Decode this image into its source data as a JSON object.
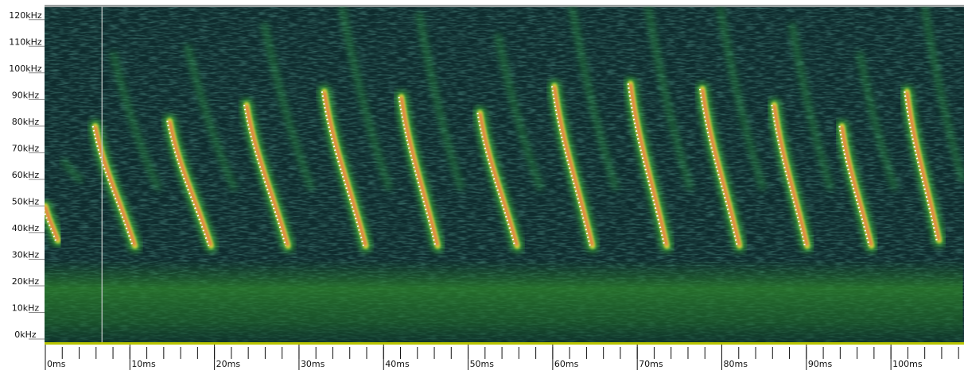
{
  "chart_data": {
    "type": "spectrogram",
    "xlim": [
      0,
      108.5
    ],
    "ylim": [
      0,
      125
    ],
    "yticks": [
      {
        "value": 0,
        "label": "0kHz"
      },
      {
        "value": 10,
        "label": "10kHz"
      },
      {
        "value": 20,
        "label": "20kHz"
      },
      {
        "value": 30,
        "label": "30kHz"
      },
      {
        "value": 40,
        "label": "40kHz"
      },
      {
        "value": 50,
        "label": "50kHz"
      },
      {
        "value": 60,
        "label": "60kHz"
      },
      {
        "value": 70,
        "label": "70kHz"
      },
      {
        "value": 80,
        "label": "80kHz"
      },
      {
        "value": 90,
        "label": "90kHz"
      },
      {
        "value": 100,
        "label": "100kHz"
      },
      {
        "value": 110,
        "label": "110kHz"
      },
      {
        "value": 120,
        "label": "120kHz"
      }
    ],
    "xticks": [
      {
        "value": 0,
        "label": "0ms"
      },
      {
        "value": 10,
        "label": "10ms"
      },
      {
        "value": 20,
        "label": "20ms"
      },
      {
        "value": 30,
        "label": "30ms"
      },
      {
        "value": 40,
        "label": "40ms"
      },
      {
        "value": 50,
        "label": "50ms"
      },
      {
        "value": 60,
        "label": "60ms"
      },
      {
        "value": 70,
        "label": "70ms"
      },
      {
        "value": 80,
        "label": "80ms"
      },
      {
        "value": 90,
        "label": "90ms"
      },
      {
        "value": 100,
        "label": "100ms"
      }
    ],
    "xminor_ticks": [
      0,
      2,
      4,
      6,
      8,
      10,
      12,
      14,
      16,
      18,
      20,
      22,
      24,
      26,
      28,
      30,
      32,
      34,
      36,
      38,
      40,
      42,
      44,
      46,
      48,
      50,
      52,
      54,
      56,
      58,
      60,
      62,
      64,
      66,
      68,
      70,
      72,
      74,
      76,
      78,
      80,
      82,
      84,
      86,
      88,
      90,
      92,
      94,
      96,
      98,
      100,
      102,
      104,
      106,
      108
    ],
    "cursor_x": 6.7,
    "calls": [
      {
        "t_start": 0,
        "t_end": 1.5,
        "f_start": 50,
        "f_end": 37
      },
      {
        "t_start": 5.9,
        "t_end": 10.6,
        "f_start": 80,
        "f_end": 35
      },
      {
        "t_start": 14.7,
        "t_end": 19.6,
        "f_start": 82,
        "f_end": 35
      },
      {
        "t_start": 23.8,
        "t_end": 28.7,
        "f_start": 88,
        "f_end": 35
      },
      {
        "t_start": 33.0,
        "t_end": 37.9,
        "f_start": 93,
        "f_end": 35
      },
      {
        "t_start": 42.1,
        "t_end": 46.4,
        "f_start": 91,
        "f_end": 35
      },
      {
        "t_start": 51.4,
        "t_end": 55.8,
        "f_start": 85,
        "f_end": 35
      },
      {
        "t_start": 60.2,
        "t_end": 64.7,
        "f_start": 95,
        "f_end": 35
      },
      {
        "t_start": 69.2,
        "t_end": 73.5,
        "f_start": 96,
        "f_end": 35
      },
      {
        "t_start": 77.7,
        "t_end": 82.1,
        "f_start": 94,
        "f_end": 35
      },
      {
        "t_start": 86.2,
        "t_end": 90.1,
        "f_start": 88,
        "f_end": 35
      },
      {
        "t_start": 94.2,
        "t_end": 97.7,
        "f_start": 80,
        "f_end": 35
      },
      {
        "t_start": 101.9,
        "t_end": 105.7,
        "f_start": 93,
        "f_end": 37
      }
    ]
  }
}
